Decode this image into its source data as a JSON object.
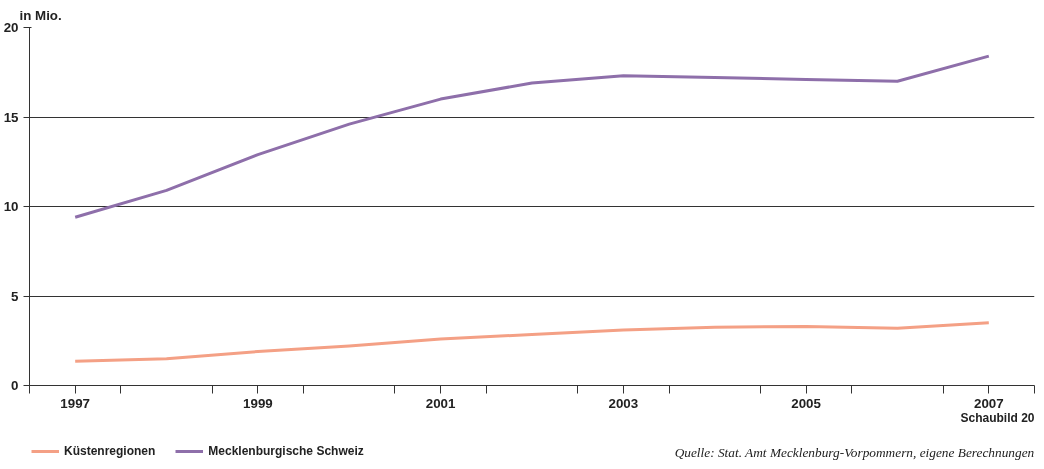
{
  "chart_data": {
    "type": "line",
    "ylabel": "in Mio.",
    "x": [
      1997,
      1998,
      1999,
      2000,
      2001,
      2002,
      2003,
      2004,
      2005,
      2006,
      2007
    ],
    "xlim": [
      1996.5,
      2007.5
    ],
    "xticks": [
      {
        "value": 1996.5,
        "label": null
      },
      {
        "value": 1997,
        "label": "1997"
      },
      {
        "value": 1997.5,
        "label": null
      },
      {
        "value": 1998.5,
        "label": null
      },
      {
        "value": 1999,
        "label": "1999"
      },
      {
        "value": 1999.5,
        "label": null
      },
      {
        "value": 2000.5,
        "label": null
      },
      {
        "value": 2001,
        "label": "2001"
      },
      {
        "value": 2001.5,
        "label": null
      },
      {
        "value": 2002.5,
        "label": null
      },
      {
        "value": 2003,
        "label": "2003"
      },
      {
        "value": 2003.5,
        "label": null
      },
      {
        "value": 2004.5,
        "label": null
      },
      {
        "value": 2005,
        "label": "2005"
      },
      {
        "value": 2005.5,
        "label": null
      },
      {
        "value": 2006.5,
        "label": null
      },
      {
        "value": 2007,
        "label": "2007"
      },
      {
        "value": 2007.5,
        "label": null
      }
    ],
    "ylim": [
      0,
      20
    ],
    "yticks": [
      0,
      5,
      10,
      15,
      20
    ],
    "grid": "y",
    "legend": "bottom left",
    "marker": "none",
    "line_style": "solid",
    "series": [
      {
        "name": "Küstenregionen",
        "color": "#f4a085",
        "values": [
          1.35,
          1.5,
          1.9,
          2.2,
          2.6,
          2.85,
          3.1,
          3.25,
          3.3,
          3.2,
          3.5
        ]
      },
      {
        "name": "Mecklenburgische Schweiz",
        "color": "#8e6faa",
        "values": [
          9.4,
          10.9,
          12.9,
          14.6,
          16.0,
          16.9,
          17.3,
          17.2,
          17.1,
          17.0,
          18.4
        ]
      }
    ],
    "annotations": [
      "Schaubild 20",
      "Quelle: Stat. Amt Mecklenburg-Vorpommern, eigene Berechnungen"
    ]
  }
}
